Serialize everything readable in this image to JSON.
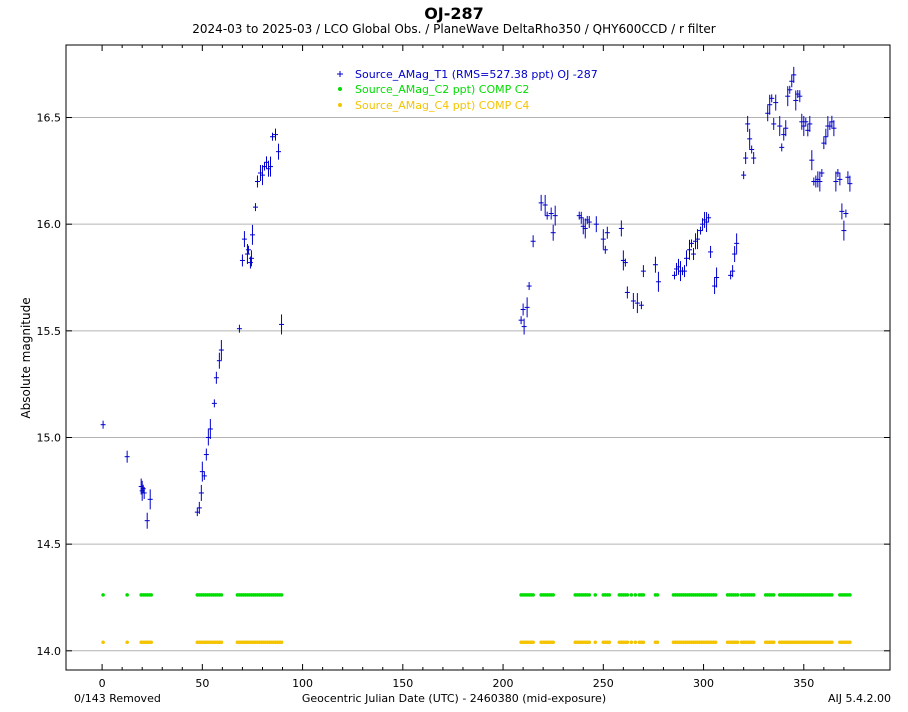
{
  "chart_data": {
    "type": "scatter",
    "title": "OJ-287",
    "subtitle": "2024-03 to 2025-03 / LCO Global Obs. / PlaneWave DeltaRho350 / QHY600CCD / r filter",
    "xlabel": "Geocentric Julian Date (UTC) - 2460380 (mid-exposure)",
    "ylabel": "Absolute magnitude",
    "xlim": [
      -18,
      393
    ],
    "ylim": [
      13.91,
      16.84
    ],
    "xticks": [
      0,
      50,
      100,
      150,
      200,
      250,
      300,
      350
    ],
    "yticks": [
      14.0,
      14.5,
      15.0,
      15.5,
      16.0,
      16.5
    ],
    "ytick_labels": [
      "14.0",
      "14.5",
      "15.0",
      "15.5",
      "16.0",
      "16.5"
    ],
    "grid": "horizontal",
    "legend_position": "top-center",
    "series": [
      {
        "name": "Source_AMag_T1 (RMS=527.38 ppt) OJ -287",
        "color": "#0000cc",
        "marker": "plus",
        "x": [
          0.5,
          12.5,
          19.5,
          20,
          20.5,
          21,
          22.5,
          24,
          47.5,
          48.5,
          49.5,
          50,
          51,
          52,
          53,
          54,
          56,
          57,
          58.5,
          59.5,
          68.5,
          70,
          71,
          72.5,
          73,
          74,
          74.5,
          75,
          76.5,
          77.5,
          79,
          80,
          81,
          82,
          83,
          84,
          85,
          86.5,
          88,
          89.5,
          209,
          210,
          210.5,
          212,
          213,
          215,
          219,
          221,
          222,
          224,
          225,
          226,
          238,
          239,
          240,
          241,
          242,
          243,
          246.5,
          250,
          251,
          252,
          259,
          260,
          261,
          262,
          265,
          267,
          269,
          270,
          276,
          277.5,
          285.5,
          286.5,
          287.5,
          288.5,
          289.5,
          290.5,
          291.5,
          293,
          294,
          295,
          296,
          297,
          298.5,
          299.5,
          300.5,
          301.5,
          302.5,
          303.5,
          305.5,
          306.5,
          313.5,
          314.5,
          315.5,
          316.5,
          320,
          321,
          322,
          323,
          324,
          325,
          332,
          333,
          334,
          335,
          336,
          338,
          339,
          340,
          341,
          342,
          343,
          344,
          345,
          346,
          347,
          348,
          349,
          350,
          351,
          352,
          353,
          354,
          355,
          356,
          357,
          358,
          359,
          360,
          361,
          362,
          363,
          364,
          365,
          366,
          367,
          368,
          369,
          370,
          371,
          372,
          373
        ],
        "y": [
          15.06,
          14.91,
          14.77,
          14.75,
          14.76,
          14.74,
          14.61,
          14.71,
          14.65,
          14.67,
          14.74,
          14.84,
          14.82,
          14.92,
          15.0,
          15.04,
          15.16,
          15.28,
          15.36,
          15.41,
          15.51,
          15.83,
          15.93,
          15.86,
          15.88,
          15.82,
          15.84,
          15.95,
          16.08,
          16.2,
          16.24,
          16.23,
          16.27,
          16.29,
          16.26,
          16.27,
          16.41,
          16.42,
          16.34,
          15.53,
          15.55,
          15.6,
          15.52,
          15.61,
          15.71,
          15.92,
          16.1,
          16.09,
          16.04,
          16.05,
          15.96,
          16.04,
          16.04,
          16.03,
          15.99,
          15.98,
          16.02,
          16.01,
          16.0,
          15.93,
          15.88,
          15.96,
          15.98,
          15.83,
          15.82,
          15.68,
          15.64,
          15.63,
          15.62,
          15.78,
          15.81,
          15.73,
          15.76,
          15.79,
          15.8,
          15.78,
          15.78,
          15.78,
          15.84,
          15.88,
          15.91,
          15.86,
          15.92,
          15.93,
          15.97,
          16.0,
          16.02,
          16.01,
          16.03,
          15.87,
          15.71,
          15.75,
          15.76,
          15.78,
          15.86,
          15.91,
          16.23,
          16.31,
          16.47,
          16.4,
          16.35,
          16.31,
          16.52,
          16.56,
          16.59,
          16.47,
          16.57,
          16.46,
          16.36,
          16.42,
          16.45,
          16.6,
          16.63,
          16.67,
          16.7,
          16.58,
          16.61,
          16.6,
          16.48,
          16.46,
          16.48,
          16.44,
          16.47,
          16.3,
          16.2,
          16.2,
          16.21,
          16.2,
          16.24,
          16.38,
          16.41,
          16.46,
          16.46,
          16.48,
          16.45,
          16.2,
          16.24,
          16.21,
          16.06,
          15.97,
          16.05,
          16.22,
          16.19
        ]
      },
      {
        "name": "Source_AMag_C2 ppt) COMP C2",
        "color": "#00dd00",
        "marker": "dot",
        "level": 14.262
      },
      {
        "name": "Source_AMag_C4 ppt) COMP C4",
        "color": "#f4c400",
        "marker": "dot",
        "level": 14.04
      }
    ],
    "comp_x": [
      0.5,
      12.5,
      19.5,
      20.5,
      21.5,
      22.5,
      23.5,
      24.5,
      47.5,
      48.5,
      49.5,
      50.5,
      51.5,
      52.5,
      53.5,
      54.5,
      55.5,
      56.5,
      57.5,
      58.5,
      59.5,
      67.5,
      68.5,
      69.5,
      70.5,
      71.5,
      72.5,
      73.5,
      74.5,
      75.5,
      76.5,
      77.5,
      78.5,
      79.5,
      80.5,
      81.5,
      82.5,
      83.5,
      84.5,
      85.5,
      86.5,
      87.5,
      88.5,
      89.5,
      209,
      210,
      211,
      212,
      213,
      214,
      215,
      219,
      220,
      221,
      222,
      223,
      224,
      225,
      236,
      237,
      238,
      239,
      240,
      241,
      242,
      243,
      246,
      250,
      251,
      252,
      253,
      258,
      259,
      260,
      261,
      262,
      264,
      266,
      268,
      269,
      270,
      276,
      277,
      285,
      286,
      287,
      288,
      289,
      290,
      291,
      292,
      293,
      294,
      295,
      296,
      297,
      298,
      299,
      300,
      301,
      302,
      303,
      304,
      305,
      306,
      312,
      313,
      314,
      315,
      316,
      317,
      319,
      320,
      321,
      322,
      323,
      324,
      325,
      331,
      332,
      333,
      334,
      335,
      338,
      339,
      340,
      341,
      342,
      343,
      344,
      345,
      346,
      347,
      348,
      349,
      350,
      351,
      352,
      353,
      354,
      355,
      356,
      357,
      358,
      359,
      360,
      361,
      362,
      363,
      364,
      368,
      369,
      370,
      371,
      372,
      373
    ]
  },
  "footer": {
    "removed": "0/143 Removed",
    "version": "AIJ 5.4.2.00"
  }
}
